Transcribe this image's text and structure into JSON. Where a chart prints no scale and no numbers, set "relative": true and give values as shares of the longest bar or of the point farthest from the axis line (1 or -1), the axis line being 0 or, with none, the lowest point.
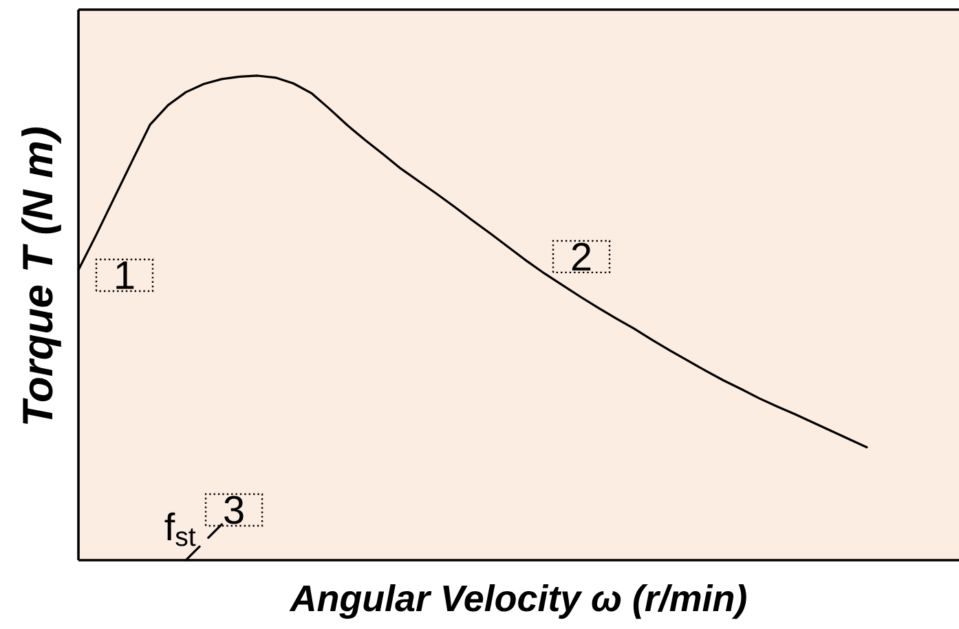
{
  "chart_data": {
    "type": "line",
    "relative": true,
    "xlabel": "Angular Velocity ω (r/min)",
    "ylabel": "Torque T (N m)",
    "categories": [
      null,
      null,
      null,
      null,
      null,
      null,
      null,
      null,
      null,
      null,
      null,
      null,
      null,
      null,
      null,
      null,
      null,
      null,
      null,
      null,
      null,
      null,
      null,
      null,
      null,
      null,
      null,
      null,
      null,
      null,
      null,
      null,
      null,
      null,
      null,
      null,
      null,
      null,
      null,
      null,
      null,
      null,
      null,
      null,
      null
    ],
    "series": [
      {
        "color": "#000000",
        "values": [
          0.599,
          0.672,
          0.748,
          0.824,
          0.899,
          0.939,
          0.966,
          0.983,
          0.993,
          0.998,
          1,
          0.996,
          0.984,
          0.964,
          0.932,
          0.898,
          0.867,
          0.838,
          0.808,
          0.782,
          0.756,
          0.729,
          0.701,
          0.674,
          0.646,
          0.618,
          0.592,
          0.568,
          0.544,
          0.521,
          0.499,
          0.478,
          0.455,
          0.433,
          0.412,
          0.391,
          0.371,
          0.353,
          0.334,
          0.317,
          0.301,
          0.284,
          0.267,
          0.25,
          0.233
        ]
      },
      {
        "color": "#000000",
        "line_style": "dashed",
        "values": [
          null,
          null,
          null,
          null,
          null,
          null,
          0,
          0.037,
          0.074,
          null,
          null,
          null,
          null,
          null,
          null,
          null,
          null,
          null,
          null,
          null,
          null,
          null,
          null,
          null,
          null,
          null,
          null,
          null,
          null,
          null,
          null,
          null,
          null,
          null,
          null,
          null,
          null,
          null,
          null,
          null,
          null,
          null,
          null,
          null,
          null
        ]
      }
    ],
    "annotations": [
      "1",
      "2",
      "3",
      "f$_{st}$"
    ]
  }
}
